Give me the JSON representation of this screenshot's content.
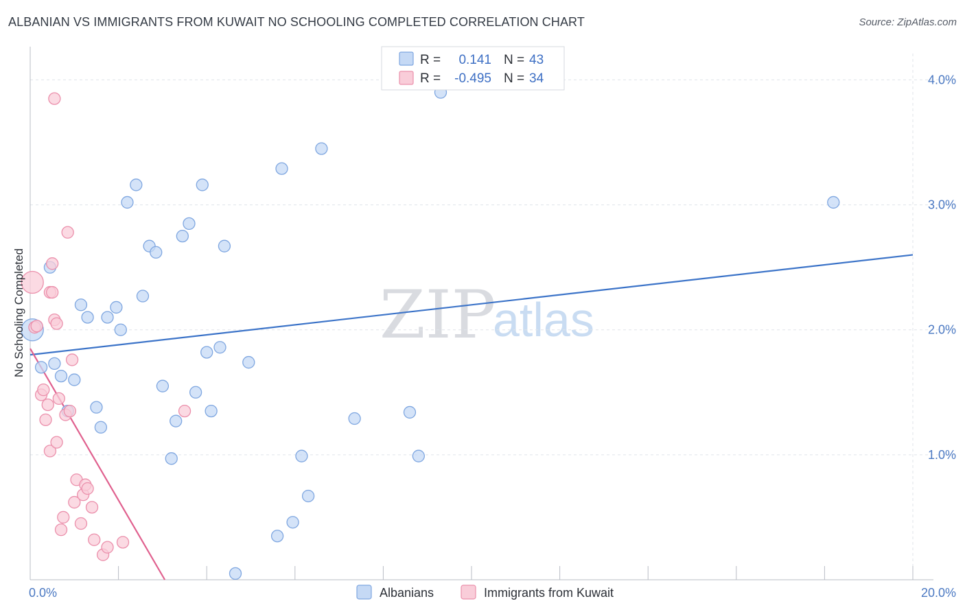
{
  "title": "ALBANIAN VS IMMIGRANTS FROM KUWAIT NO SCHOOLING COMPLETED CORRELATION CHART",
  "source": "Source: ZipAtlas.com",
  "watermark": {
    "zip": "ZIP",
    "atlas": "atlas"
  },
  "colors": {
    "blue_fill": "#c5d9f5",
    "blue_stroke": "#7ea6e0",
    "blue_line": "#3b73c8",
    "pink_fill": "#f9cdd9",
    "pink_stroke": "#eb8fab",
    "pink_line": "#e0608e",
    "grid": "#dfe3ea",
    "tick_text": "#4a78c2"
  },
  "chart_data": {
    "type": "scatter",
    "title": "ALBANIAN VS IMMIGRANTS FROM KUWAIT NO SCHOOLING COMPLETED CORRELATION CHART",
    "xlabel": "",
    "ylabel": "No Schooling Completed",
    "xlim": [
      0,
      20
    ],
    "ylim": [
      0,
      4.2
    ],
    "x_tick_labels": [
      {
        "value": 0,
        "label": "0.0%"
      },
      {
        "value": 20,
        "label": "20.0%"
      }
    ],
    "y_tick_labels": [
      {
        "value": 1,
        "label": "1.0%"
      },
      {
        "value": 2,
        "label": "2.0%"
      },
      {
        "value": 3,
        "label": "3.0%"
      },
      {
        "value": 4,
        "label": "4.0%"
      }
    ],
    "x_minor_ticks": [
      0,
      2,
      4,
      6,
      8,
      10,
      12,
      14,
      16,
      18,
      20
    ],
    "legend_position": "top-center",
    "legend": [
      {
        "r_label": "R =",
        "r_value": "0.141",
        "n_label": "N =",
        "n_value": "43"
      },
      {
        "r_label": "R =",
        "r_value": "-0.495",
        "n_label": "N =",
        "n_value": "34"
      }
    ],
    "series": [
      {
        "name": "Albanians",
        "color": "#c5d9f5",
        "trend": {
          "x": [
            0,
            20
          ],
          "y": [
            1.8,
            2.6
          ]
        },
        "points": [
          [
            0.05,
            2.0
          ],
          [
            0.25,
            1.7
          ],
          [
            0.45,
            2.5
          ],
          [
            0.55,
            1.73
          ],
          [
            0.7,
            1.63
          ],
          [
            0.85,
            1.35
          ],
          [
            1.0,
            1.6
          ],
          [
            1.15,
            2.2
          ],
          [
            1.3,
            2.1
          ],
          [
            1.5,
            1.38
          ],
          [
            1.6,
            1.22
          ],
          [
            1.75,
            2.1
          ],
          [
            1.95,
            2.18
          ],
          [
            2.05,
            2.0
          ],
          [
            2.2,
            3.02
          ],
          [
            2.4,
            3.16
          ],
          [
            2.55,
            2.27
          ],
          [
            2.7,
            2.67
          ],
          [
            2.85,
            2.62
          ],
          [
            3.0,
            1.55
          ],
          [
            3.2,
            0.97
          ],
          [
            3.3,
            1.27
          ],
          [
            3.45,
            2.75
          ],
          [
            3.6,
            2.85
          ],
          [
            3.75,
            1.5
          ],
          [
            3.9,
            3.16
          ],
          [
            4.0,
            1.82
          ],
          [
            4.1,
            1.35
          ],
          [
            4.3,
            1.86
          ],
          [
            4.4,
            2.67
          ],
          [
            4.65,
            0.05
          ],
          [
            4.95,
            1.74
          ],
          [
            5.6,
            0.35
          ],
          [
            5.7,
            3.29
          ],
          [
            5.95,
            0.46
          ],
          [
            6.15,
            0.99
          ],
          [
            6.3,
            0.67
          ],
          [
            6.6,
            3.45
          ],
          [
            7.35,
            1.29
          ],
          [
            8.6,
            1.34
          ],
          [
            8.8,
            0.99
          ],
          [
            18.2,
            3.02
          ],
          [
            9.3,
            3.9
          ]
        ]
      },
      {
        "name": "Immigrants from Kuwait",
        "color": "#f9cdd9",
        "trend": {
          "x": [
            0,
            3.05
          ],
          "y": [
            1.85,
            0.0
          ]
        },
        "points": [
          [
            0.05,
            2.38
          ],
          [
            0.1,
            2.02
          ],
          [
            0.15,
            2.03
          ],
          [
            0.25,
            1.48
          ],
          [
            0.3,
            1.52
          ],
          [
            0.35,
            1.28
          ],
          [
            0.4,
            1.4
          ],
          [
            0.45,
            2.3
          ],
          [
            0.5,
            2.53
          ],
          [
            0.45,
            1.03
          ],
          [
            0.5,
            2.3
          ],
          [
            0.55,
            2.08
          ],
          [
            0.6,
            2.05
          ],
          [
            0.55,
            3.85
          ],
          [
            0.6,
            1.1
          ],
          [
            0.65,
            1.45
          ],
          [
            0.7,
            0.4
          ],
          [
            0.75,
            0.5
          ],
          [
            0.8,
            1.32
          ],
          [
            0.85,
            2.78
          ],
          [
            0.9,
            1.35
          ],
          [
            0.95,
            1.76
          ],
          [
            1.0,
            0.62
          ],
          [
            1.05,
            0.8
          ],
          [
            1.15,
            0.45
          ],
          [
            1.2,
            0.68
          ],
          [
            1.25,
            0.76
          ],
          [
            1.3,
            0.73
          ],
          [
            1.4,
            0.58
          ],
          [
            1.45,
            0.32
          ],
          [
            1.65,
            0.2
          ],
          [
            1.75,
            0.26
          ],
          [
            2.1,
            0.3
          ],
          [
            3.5,
            1.35
          ]
        ]
      }
    ]
  }
}
